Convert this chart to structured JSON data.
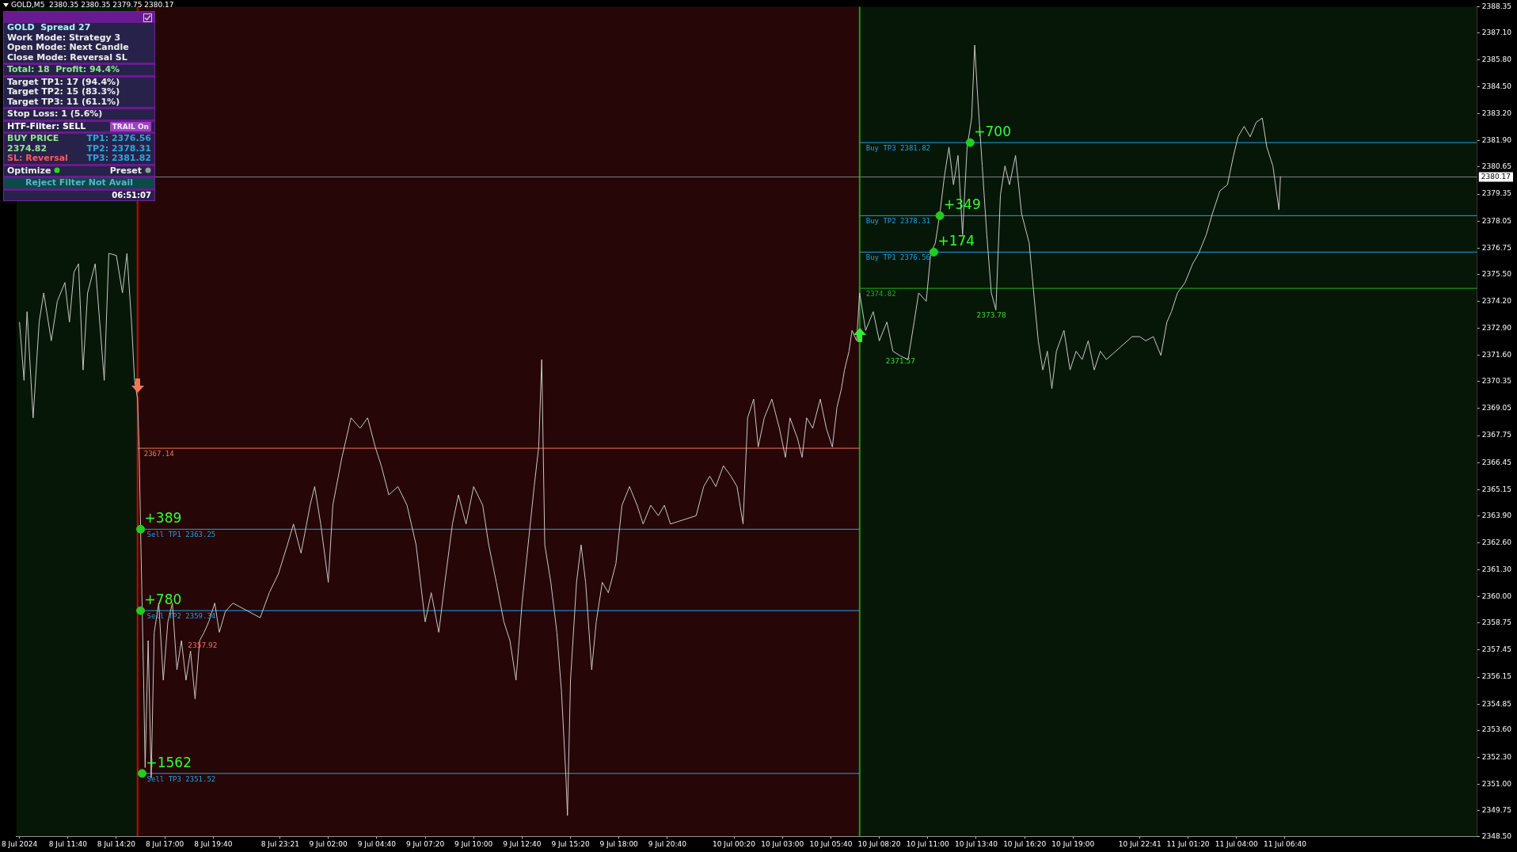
{
  "chart_data": {
    "type": "line",
    "title": "GOLD,M5  2380.35 2380.35 2379.75 2380.17",
    "xlim": [
      "2024-07-08T08:50",
      "2024-07-11T17:15"
    ],
    "xticks": [
      {
        "value": "2024-07-08T09:00",
        "label": "8 Jul 2024"
      },
      {
        "value": "2024-07-08T11:40",
        "label": "8 Jul 11:40"
      },
      {
        "value": "2024-07-08T14:20",
        "label": "8 Jul 14:20"
      },
      {
        "value": "2024-07-08T17:00",
        "label": "8 Jul 17:00"
      },
      {
        "value": "2024-07-08T19:40",
        "label": "8 Jul 19:40"
      },
      {
        "value": "2024-07-08T23:21",
        "label": "8 Jul 23:21"
      },
      {
        "value": "2024-07-09T02:00",
        "label": "9 Jul 02:00"
      },
      {
        "value": "2024-07-09T04:40",
        "label": "9 Jul 04:40"
      },
      {
        "value": "2024-07-09T07:20",
        "label": "9 Jul 07:20"
      },
      {
        "value": "2024-07-09T10:00",
        "label": "9 Jul 10:00"
      },
      {
        "value": "2024-07-09T12:40",
        "label": "9 Jul 12:40"
      },
      {
        "value": "2024-07-09T15:20",
        "label": "9 Jul 15:20"
      },
      {
        "value": "2024-07-09T18:00",
        "label": "9 Jul 18:00"
      },
      {
        "value": "2024-07-09T20:40",
        "label": "9 Jul 20:40"
      },
      {
        "value": "2024-07-10T00:20",
        "label": "10 Jul 00:20"
      },
      {
        "value": "2024-07-10T03:00",
        "label": "10 Jul 03:00"
      },
      {
        "value": "2024-07-10T05:40",
        "label": "10 Jul 05:40"
      },
      {
        "value": "2024-07-10T08:20",
        "label": "10 Jul 08:20"
      },
      {
        "value": "2024-07-10T11:00",
        "label": "10 Jul 11:00"
      },
      {
        "value": "2024-07-10T13:40",
        "label": "10 Jul 13:40"
      },
      {
        "value": "2024-07-10T16:20",
        "label": "10 Jul 16:20"
      },
      {
        "value": "2024-07-10T19:00",
        "label": "10 Jul 19:00"
      },
      {
        "value": "2024-07-10T22:41",
        "label": "10 Jul 22:41"
      },
      {
        "value": "2024-07-11T01:20",
        "label": "11 Jul 01:20"
      },
      {
        "value": "2024-07-11T04:00",
        "label": "11 Jul 04:00"
      },
      {
        "value": "2024-07-11T06:40",
        "label": "11 Jul 06:40"
      }
    ],
    "ylim": [
      2348.5,
      2388.35
    ],
    "yticks": [
      2388.35,
      {
        "value": 2387.1,
        "label": "2387.10"
      },
      {
        "value": 2385.8,
        "label": "2385.80"
      },
      {
        "value": 2384.5,
        "label": "2384.50"
      },
      {
        "value": 2383.2,
        "label": "2383.20"
      },
      {
        "value": 2381.9,
        "label": "2381.90"
      },
      2380.65,
      2379.35,
      2378.05,
      2376.75,
      {
        "value": 2375.5,
        "label": "2375.50"
      },
      {
        "value": 2374.2,
        "label": "2374.20"
      },
      {
        "value": 2372.9,
        "label": "2372.90"
      },
      {
        "value": 2371.6,
        "label": "2371.60"
      },
      2370.35,
      2369.05,
      2367.75,
      2366.45,
      2365.15,
      {
        "value": 2363.9,
        "label": "2363.90"
      },
      {
        "value": 2362.6,
        "label": "2362.60"
      },
      {
        "value": 2361.3,
        "label": "2361.30"
      },
      {
        "value": 2360,
        "label": "2360.00"
      },
      2358.75,
      2357.45,
      2356.15,
      2354.85,
      {
        "value": 2353.6,
        "label": "2353.60"
      },
      {
        "value": 2352.3,
        "label": "2352.30"
      },
      {
        "value": 2351,
        "label": "2351.00"
      },
      2349.75,
      {
        "value": 2348.5,
        "label": "2348.50"
      }
    ],
    "grid": false,
    "legend": false,
    "series": [
      {
        "color": "#c8c8c8",
        "x": [
          "2024-07-08T09:00",
          "2024-07-08T09:15",
          "2024-07-08T09:25",
          "2024-07-08T09:45",
          "2024-07-08T10:05",
          "2024-07-08T10:20",
          "2024-07-08T10:45",
          "2024-07-08T11:05",
          "2024-07-08T11:30",
          "2024-07-08T11:45",
          "2024-07-08T12:00",
          "2024-07-08T12:15",
          "2024-07-08T12:30",
          "2024-07-08T12:45",
          "2024-07-08T13:10",
          "2024-07-08T13:40",
          "2024-07-08T13:55",
          "2024-07-08T14:20",
          "2024-07-08T14:40",
          "2024-07-08T14:55",
          "2024-07-08T15:10",
          "2024-07-08T15:20",
          "2024-07-08T15:30",
          "2024-07-08T15:35",
          "2024-07-08T15:40",
          "2024-07-08T15:50",
          "2024-07-08T15:55",
          "2024-07-08T16:05",
          "2024-07-08T16:15",
          "2024-07-08T16:25",
          "2024-07-08T16:40",
          "2024-07-08T16:55",
          "2024-07-08T17:10",
          "2024-07-08T17:25",
          "2024-07-08T17:40",
          "2024-07-08T17:55",
          "2024-07-08T18:10",
          "2024-07-08T18:25",
          "2024-07-08T18:40",
          "2024-07-08T18:55",
          "2024-07-08T19:10",
          "2024-07-08T19:25",
          "2024-07-08T19:45",
          "2024-07-08T20:00",
          "2024-07-08T20:20",
          "2024-07-08T20:45",
          "2024-07-08T22:15",
          "2024-07-08T22:45",
          "2024-07-08T23:15",
          "2024-07-08T23:45",
          "2024-07-09T00:05",
          "2024-07-09T00:30",
          "2024-07-09T01:00",
          "2024-07-09T01:15",
          "2024-07-09T01:35",
          "2024-07-09T02:00",
          "2024-07-09T02:15",
          "2024-07-09T02:45",
          "2024-07-09T03:15",
          "2024-07-09T03:45",
          "2024-07-09T04:10",
          "2024-07-09T04:35",
          "2024-07-09T04:55",
          "2024-07-09T05:20",
          "2024-07-09T05:50",
          "2024-07-09T06:20",
          "2024-07-09T06:50",
          "2024-07-09T07:20",
          "2024-07-09T07:40",
          "2024-07-09T08:05",
          "2024-07-09T08:25",
          "2024-07-09T08:50",
          "2024-07-09T09:10",
          "2024-07-09T09:35",
          "2024-07-09T10:00",
          "2024-07-09T10:30",
          "2024-07-09T10:50",
          "2024-07-09T11:15",
          "2024-07-09T11:40",
          "2024-07-09T12:00",
          "2024-07-09T12:20",
          "2024-07-09T12:40",
          "2024-07-09T13:00",
          "2024-07-09T13:20",
          "2024-07-09T13:35",
          "2024-07-09T13:45",
          "2024-07-09T13:55",
          "2024-07-09T14:15",
          "2024-07-09T14:35",
          "2024-07-09T14:50",
          "2024-07-09T15:05",
          "2024-07-09T15:10",
          "2024-07-09T15:20",
          "2024-07-09T15:40",
          "2024-07-09T15:55",
          "2024-07-09T16:10",
          "2024-07-09T16:30",
          "2024-07-09T16:45",
          "2024-07-09T17:05",
          "2024-07-09T17:25",
          "2024-07-09T17:50",
          "2024-07-09T18:10",
          "2024-07-09T18:35",
          "2024-07-09T19:00",
          "2024-07-09T19:20",
          "2024-07-09T19:45",
          "2024-07-09T20:10",
          "2024-07-09T20:30",
          "2024-07-09T20:50",
          "2024-07-09T22:15",
          "2024-07-09T22:40",
          "2024-07-09T23:00",
          "2024-07-09T23:20",
          "2024-07-09T23:45",
          "2024-07-10T00:10",
          "2024-07-10T00:30",
          "2024-07-10T00:50",
          "2024-07-10T01:05",
          "2024-07-10T01:25",
          "2024-07-10T01:40",
          "2024-07-10T02:00",
          "2024-07-10T02:25",
          "2024-07-10T02:50",
          "2024-07-10T03:10",
          "2024-07-10T03:25",
          "2024-07-10T03:50",
          "2024-07-10T04:05",
          "2024-07-10T04:20",
          "2024-07-10T04:40",
          "2024-07-10T05:05",
          "2024-07-10T05:25",
          "2024-07-10T05:45",
          "2024-07-10T06:00",
          "2024-07-10T06:15",
          "2024-07-10T06:25",
          "2024-07-10T06:40",
          "2024-07-10T06:50",
          "2024-07-10T07:05",
          "2024-07-10T07:15",
          "2024-07-10T07:35",
          "2024-07-10T08:00",
          "2024-07-10T08:20",
          "2024-07-10T08:45",
          "2024-07-10T09:05",
          "2024-07-10T09:30",
          "2024-07-10T09:55",
          "2024-07-10T10:15",
          "2024-07-10T10:30",
          "2024-07-10T10:55",
          "2024-07-10T11:10",
          "2024-07-10T11:25",
          "2024-07-10T11:40",
          "2024-07-10T11:55",
          "2024-07-10T12:10",
          "2024-07-10T12:25",
          "2024-07-10T12:40",
          "2024-07-10T12:55",
          "2024-07-10T13:10",
          "2024-07-10T13:25",
          "2024-07-10T13:35",
          "2024-07-10T13:45",
          "2024-07-10T14:00",
          "2024-07-10T14:15",
          "2024-07-10T14:30",
          "2024-07-10T14:45",
          "2024-07-10T15:00",
          "2024-07-10T15:15",
          "2024-07-10T15:30",
          "2024-07-10T15:50",
          "2024-07-10T16:10",
          "2024-07-10T16:35",
          "2024-07-10T16:50",
          "2024-07-10T17:05",
          "2024-07-10T17:20",
          "2024-07-10T17:35",
          "2024-07-10T17:50",
          "2024-07-10T18:05",
          "2024-07-10T18:30",
          "2024-07-10T18:50",
          "2024-07-10T19:10",
          "2024-07-10T19:30",
          "2024-07-10T19:50",
          "2024-07-10T20:10",
          "2024-07-10T20:30",
          "2024-07-10T20:50",
          "2024-07-10T22:15",
          "2024-07-10T22:40",
          "2024-07-10T23:00",
          "2024-07-10T23:25",
          "2024-07-10T23:50",
          "2024-07-11T00:10",
          "2024-07-11T00:25",
          "2024-07-11T00:45",
          "2024-07-11T01:10",
          "2024-07-11T01:35",
          "2024-07-11T01:55",
          "2024-07-11T02:20",
          "2024-07-11T02:40",
          "2024-07-11T03:05",
          "2024-07-11T03:30",
          "2024-07-11T03:50",
          "2024-07-11T04:05",
          "2024-07-11T04:25",
          "2024-07-11T04:45",
          "2024-07-11T05:05",
          "2024-07-11T05:25",
          "2024-07-11T05:40",
          "2024-07-11T06:00",
          "2024-07-11T06:20",
          "2024-07-11T06:25"
        ],
        "values": [
          2373.2,
          2370.4,
          2373.7,
          2368.6,
          2373.2,
          2374.6,
          2372.3,
          2374.2,
          2375.1,
          2373.2,
          2375.6,
          2376.0,
          2370.9,
          2374.6,
          2376.0,
          2370.4,
          2376.5,
          2376.4,
          2374.6,
          2376.5,
          2373.2,
          2370.4,
          2369.5,
          2367.2,
          2363.2,
          2356.0,
          2351.8,
          2357.9,
          2351.3,
          2358.3,
          2359.7,
          2356.0,
          2358.8,
          2359.7,
          2356.5,
          2357.9,
          2356.0,
          2357.4,
          2355.1,
          2357.9,
          2358.3,
          2358.8,
          2359.7,
          2358.3,
          2359.3,
          2359.7,
          2359.0,
          2360.2,
          2361.1,
          2362.5,
          2363.5,
          2362.1,
          2364.4,
          2365.3,
          2363.5,
          2360.7,
          2364.4,
          2366.7,
          2368.6,
          2368.1,
          2368.6,
          2367.2,
          2366.3,
          2364.9,
          2365.3,
          2364.4,
          2362.5,
          2358.8,
          2360.2,
          2358.3,
          2360.7,
          2363.5,
          2364.9,
          2363.5,
          2365.3,
          2364.4,
          2362.5,
          2360.7,
          2358.8,
          2357.9,
          2356.0,
          2359.7,
          2362.5,
          2365.3,
          2367.2,
          2371.4,
          2362.5,
          2360.7,
          2358.3,
          2355.5,
          2351.3,
          2349.5,
          2356.0,
          2360.7,
          2362.5,
          2360.7,
          2356.5,
          2358.8,
          2360.7,
          2360.2,
          2361.6,
          2364.4,
          2365.3,
          2364.4,
          2363.5,
          2364.4,
          2363.9,
          2364.4,
          2363.5,
          2363.9,
          2365.3,
          2365.8,
          2365.3,
          2366.3,
          2365.8,
          2365.3,
          2363.5,
          2368.6,
          2369.5,
          2367.2,
          2368.6,
          2369.5,
          2368.1,
          2366.7,
          2368.6,
          2367.6,
          2366.7,
          2368.6,
          2368.1,
          2369.5,
          2368.1,
          2367.2,
          2369.1,
          2370.0,
          2370.9,
          2371.8,
          2372.8,
          2372.3,
          2374.6,
          2372.8,
          2373.7,
          2372.3,
          2373.2,
          2371.8,
          2371.57,
          2371.4,
          2373.2,
          2374.6,
          2374.2,
          2376.5,
          2377.0,
          2378.4,
          2380.2,
          2381.6,
          2379.8,
          2381.2,
          2377.4,
          2381.6,
          2383.0,
          2386.5,
          2384.0,
          2380.7,
          2377.4,
          2374.6,
          2373.78,
          2379.3,
          2380.7,
          2379.8,
          2381.2,
          2378.4,
          2377.0,
          2374.6,
          2372.3,
          2370.9,
          2371.8,
          2370.0,
          2371.8,
          2372.8,
          2370.9,
          2371.8,
          2371.4,
          2372.3,
          2370.9,
          2371.8,
          2371.4,
          2372.5,
          2372.5,
          2372.3,
          2372.5,
          2371.6,
          2373.2,
          2373.7,
          2374.6,
          2375.1,
          2376.0,
          2376.5,
          2377.4,
          2378.4,
          2379.5,
          2379.8,
          2381.2,
          2382.1,
          2382.6,
          2382.1,
          2382.8,
          2383.0,
          2381.6,
          2380.7,
          2378.6,
          2380.2
        ]
      },
      {
        "type": "line",
        "name": "Sell TP1 2363.25",
        "color": "#20a0e8",
        "x": [
          "2024-07-08T15:40",
          "2024-07-10T07:15"
        ],
        "values": [
          2363.25,
          2363.25
        ]
      },
      {
        "type": "line",
        "name": "Sell TP2 2359.34",
        "color": "#20a0e8",
        "x": [
          "2024-07-08T15:40",
          "2024-07-10T07:15"
        ],
        "values": [
          2359.34,
          2359.34
        ]
      },
      {
        "type": "line",
        "name": "Sell TP3 2351.52",
        "color": "#20a0e8",
        "x": [
          "2024-07-08T15:40",
          "2024-07-10T07:15"
        ],
        "values": [
          2351.52,
          2351.52
        ]
      },
      {
        "type": "line",
        "name": "Buy TP1 2376.56",
        "color": "#20a0e8",
        "x": [
          "2024-07-10T07:15",
          "2024-07-11T17:15"
        ],
        "values": [
          2376.56,
          2376.56
        ]
      },
      {
        "type": "line",
        "name": "Buy TP2 2378.31",
        "color": "#20a0e8",
        "x": [
          "2024-07-10T07:15",
          "2024-07-11T17:15"
        ],
        "values": [
          2378.31,
          2378.31
        ]
      },
      {
        "type": "line",
        "name": "Buy TP3 2381.82",
        "color": "#20a0e8",
        "x": [
          "2024-07-10T07:15",
          "2024-07-11T17:15"
        ],
        "values": [
          2381.82,
          2381.82
        ]
      },
      {
        "type": "line",
        "name": "2367.14",
        "color": "#f07858",
        "x": [
          "2024-07-08T15:30",
          "2024-07-10T07:15"
        ],
        "values": [
          2367.14,
          2367.14
        ]
      },
      {
        "type": "line",
        "name": "2374.82",
        "color": "#22b022",
        "x": [
          "2024-07-10T07:15",
          "2024-07-11T17:15"
        ],
        "values": [
          2374.82,
          2374.82
        ]
      },
      {
        "type": "scatter",
        "color": "#22cc22",
        "marker": "circle",
        "x": [
          "2024-07-08T15:40",
          "2024-07-08T15:40",
          "2024-07-08T15:45",
          "2024-07-10T11:20",
          "2024-07-10T11:40",
          "2024-07-10T13:20"
        ],
        "values": [
          2363.25,
          2359.34,
          2351.52,
          2376.56,
          2378.31,
          2381.82
        ]
      }
    ],
    "bands": [
      {
        "axis": "x",
        "from": "2024-07-08T08:50",
        "to": "2024-07-08T15:30",
        "color": "#071707"
      },
      {
        "axis": "x",
        "from": "2024-07-08T15:30",
        "to": "2024-07-10T07:15",
        "color": "#260606"
      },
      {
        "axis": "x",
        "from": "2024-07-10T07:15",
        "to": "2024-07-11T17:15",
        "color": "#071707"
      }
    ],
    "ref_lines": [
      {
        "axis": "x",
        "value": "2024-07-08T15:30",
        "color": "#d00000"
      },
      {
        "axis": "x",
        "value": "2024-07-10T07:15",
        "color": "#1c9a1c"
      },
      {
        "axis": "y",
        "value": 2380.17,
        "label": "2380.17",
        "color": "#808080"
      }
    ],
    "annotations": [
      "GOLD  Spread 27",
      "Work Mode: Strategy 3",
      "Open Mode: Next Candle",
      "Close Mode: Reversal SL",
      "Total: 18  Profit: 94.4%",
      "Target TP1: 17 (94.4%)",
      "Target TP2: 15 (83.3%)",
      "Target TP3: 11 (61.1%)",
      "Stop Loss: 1 (5.6%)",
      "HTF-Filter: SELL",
      "TRAIL On",
      "BUY PRICE",
      "2374.82",
      "SL: Reversal",
      "TP1: 2376.56",
      "TP2: 2378.31",
      "TP3: 2381.82",
      "Optimize",
      "Preset",
      "Reject Filter Not Avail",
      "06:51:07",
      {
        "text": "+389",
        "x": "2024-07-08T15:40",
        "y": 2363.25
      },
      {
        "text": "+780",
        "x": "2024-07-08T15:40",
        "y": 2359.34
      },
      {
        "text": "+1562",
        "x": "2024-07-08T15:45",
        "y": 2351.52
      },
      {
        "text": "+174",
        "x": "2024-07-10T11:20",
        "y": 2376.56
      },
      {
        "text": "+349",
        "x": "2024-07-10T11:40",
        "y": 2378.31
      },
      {
        "text": "+700",
        "x": "2024-07-10T13:20",
        "y": 2381.82
      },
      {
        "text": "2357.92",
        "x": "2024-07-08T19:05",
        "y": 2357.92
      },
      {
        "text": "2371.57",
        "x": "2024-07-10T09:30",
        "y": 2371.57
      },
      {
        "text": "2373.78",
        "x": "2024-07-10T14:30",
        "y": 2373.78
      }
    ]
  }
}
